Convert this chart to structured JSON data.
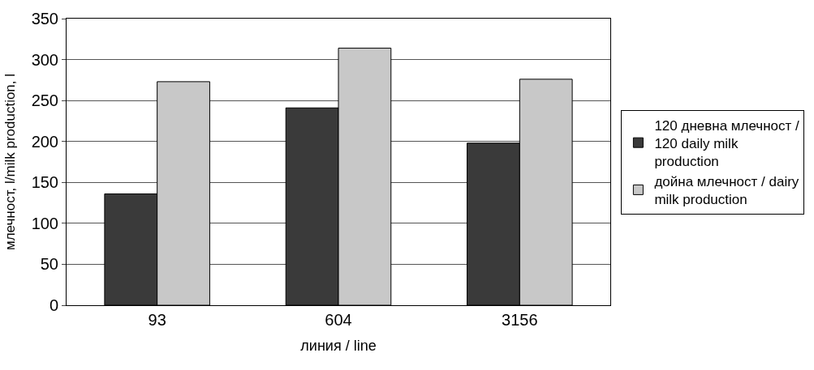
{
  "chart_data": {
    "type": "bar",
    "xlabel": "линия / line",
    "ylabel": "млечност, l/milk production, l",
    "categories": [
      "93",
      "604",
      "3156"
    ],
    "series": [
      {
        "name": "120 дневна млечност / 120 daily milk production",
        "color": "#3a3a3a",
        "values": [
          136,
          241,
          198
        ]
      },
      {
        "name": "дойна млечност / dairy milk production",
        "color": "#c8c8c8",
        "values": [
          273,
          314,
          276
        ]
      }
    ],
    "ylim": [
      0,
      350
    ],
    "yticks": [
      0,
      50,
      100,
      150,
      200,
      250,
      300,
      350
    ],
    "grid": "y",
    "legend": "right"
  }
}
